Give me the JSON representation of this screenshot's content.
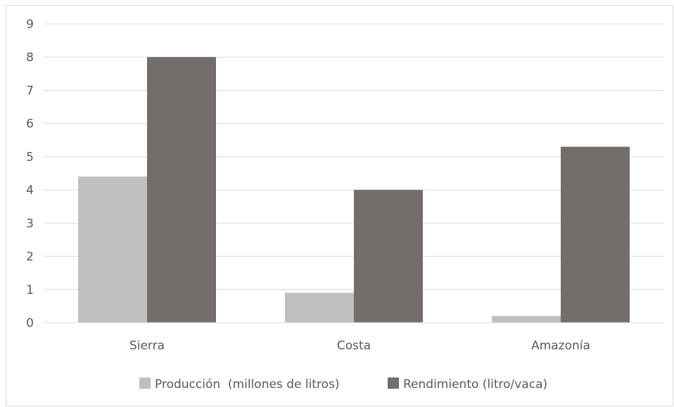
{
  "chart_data": {
    "type": "bar",
    "categories": [
      "Sierra",
      "Costa",
      "Amazonía"
    ],
    "series": [
      {
        "name": "Producción  (millones de litros)",
        "values": [
          4.4,
          0.9,
          0.2
        ],
        "color": "#bfbfbf"
      },
      {
        "name": "Rendimiento (litro/vaca)",
        "values": [
          8.0,
          4.0,
          5.3
        ],
        "color": "#736d6b"
      }
    ],
    "yticks": [
      "0",
      "1",
      "2",
      "3",
      "4",
      "5",
      "6",
      "7",
      "8",
      "9"
    ],
    "ylim": [
      0,
      9
    ],
    "grid": true,
    "legend_position": "bottom",
    "title": "",
    "xlabel": "",
    "ylabel": ""
  }
}
